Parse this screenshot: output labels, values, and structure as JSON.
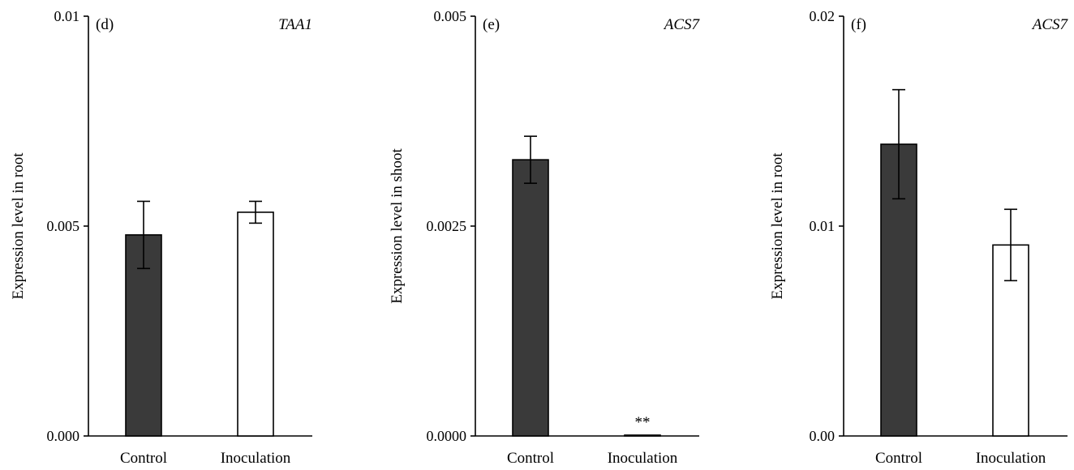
{
  "colors": {
    "control": "#3a3a3a",
    "inoculation": "#ffffff",
    "axis": "#000000"
  },
  "chart_data": [
    {
      "type": "bar",
      "panel_label": "(d)",
      "gene": "TAA1",
      "ylabel": "Expression level in root",
      "categories": [
        "Control",
        "Inoculation"
      ],
      "values": [
        0.00479,
        0.00533
      ],
      "errors": [
        0.0008,
        0.00026
      ],
      "ylim": [
        0,
        0.01
      ],
      "yticks": [
        "0.000",
        "0.005",
        "0.01"
      ],
      "ytick_values": [
        0,
        0.005,
        0.01
      ],
      "significance": [
        "",
        ""
      ]
    },
    {
      "type": "bar",
      "panel_label": "(e)",
      "gene": "ACS7",
      "ylabel": "Expression level in shoot",
      "categories": [
        "Control",
        "Inoculation"
      ],
      "values": [
        0.00329,
        1e-05
      ],
      "errors": [
        0.00028,
        0
      ],
      "ylim": [
        0,
        0.005
      ],
      "yticks": [
        "0.0000",
        "0.0025",
        "0.005"
      ],
      "ytick_values": [
        0,
        0.0025,
        0.005
      ],
      "significance": [
        "",
        "**"
      ]
    },
    {
      "type": "bar",
      "panel_label": "(f)",
      "gene": "ACS7",
      "ylabel": "Expression level in root",
      "categories": [
        "Control",
        "Inoculation"
      ],
      "values": [
        0.0139,
        0.0091
      ],
      "errors": [
        0.0026,
        0.0017
      ],
      "ylim": [
        0,
        0.02
      ],
      "yticks": [
        "0.00",
        "0.01",
        "0.02"
      ],
      "ytick_values": [
        0,
        0.01,
        0.02
      ],
      "significance": [
        "",
        ""
      ]
    }
  ]
}
